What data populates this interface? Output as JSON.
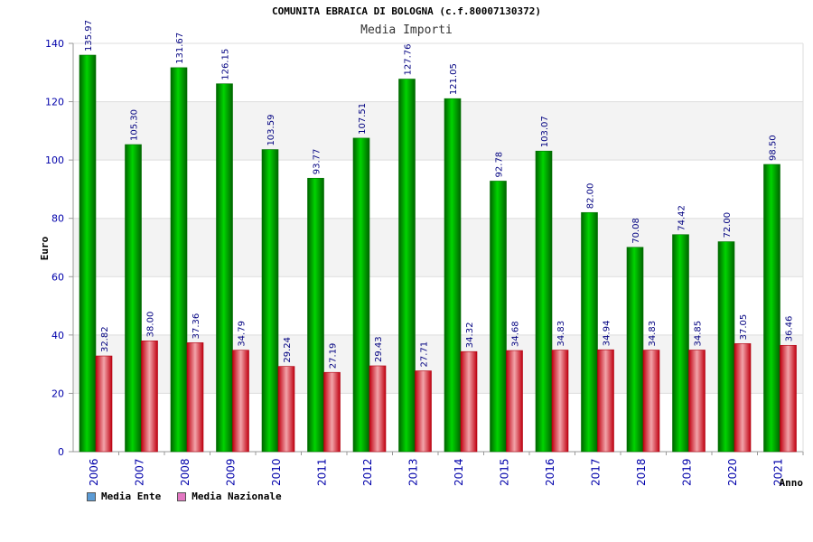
{
  "chart_data": {
    "type": "bar",
    "title": "COMUNITA EBRAICA DI BOLOGNA (c.f.80007130372)",
    "subtitle": "Media Importi",
    "xlabel": "Anno",
    "ylabel": "Euro",
    "ylim": [
      0,
      140
    ],
    "yticks": [
      0,
      20,
      40,
      60,
      80,
      100,
      120,
      140
    ],
    "categories": [
      "2006",
      "2007",
      "2008",
      "2009",
      "2010",
      "2011",
      "2012",
      "2013",
      "2014",
      "2015",
      "2016",
      "2017",
      "2018",
      "2019",
      "2020",
      "2021"
    ],
    "series": [
      {
        "name": "Media Ente",
        "color": "#00aa00",
        "values": [
          135.97,
          105.3,
          131.67,
          126.15,
          103.59,
          93.77,
          107.51,
          127.76,
          121.05,
          92.78,
          103.07,
          82.0,
          70.08,
          74.42,
          72.0,
          98.5
        ],
        "labels": [
          "135.97",
          "105.30",
          "131.67",
          "126.15",
          "103.59",
          "93.77",
          "107.51",
          "127.76",
          "121.05",
          "92.78",
          "103.07",
          "82.00",
          "70.08",
          "74.42",
          "72.00",
          "98.50"
        ]
      },
      {
        "name": "Media Nazionale",
        "color": "#e8202a",
        "values": [
          32.82,
          38.0,
          37.36,
          34.79,
          29.24,
          27.19,
          29.43,
          27.71,
          34.32,
          34.68,
          34.83,
          34.94,
          34.83,
          34.85,
          37.05,
          36.46
        ],
        "labels": [
          "32.82",
          "38.00",
          "37.36",
          "34.79",
          "29.24",
          "27.19",
          "29.43",
          "27.71",
          "34.32",
          "34.68",
          "34.83",
          "34.94",
          "34.83",
          "34.85",
          "37.05",
          "36.46"
        ]
      }
    ],
    "legend": {
      "placement": "bottom-left",
      "items": [
        {
          "label": "Media Ente",
          "color": "#5b9bd5"
        },
        {
          "label": "Media Nazionale",
          "color": "#e377c2"
        }
      ]
    },
    "grid": true
  }
}
